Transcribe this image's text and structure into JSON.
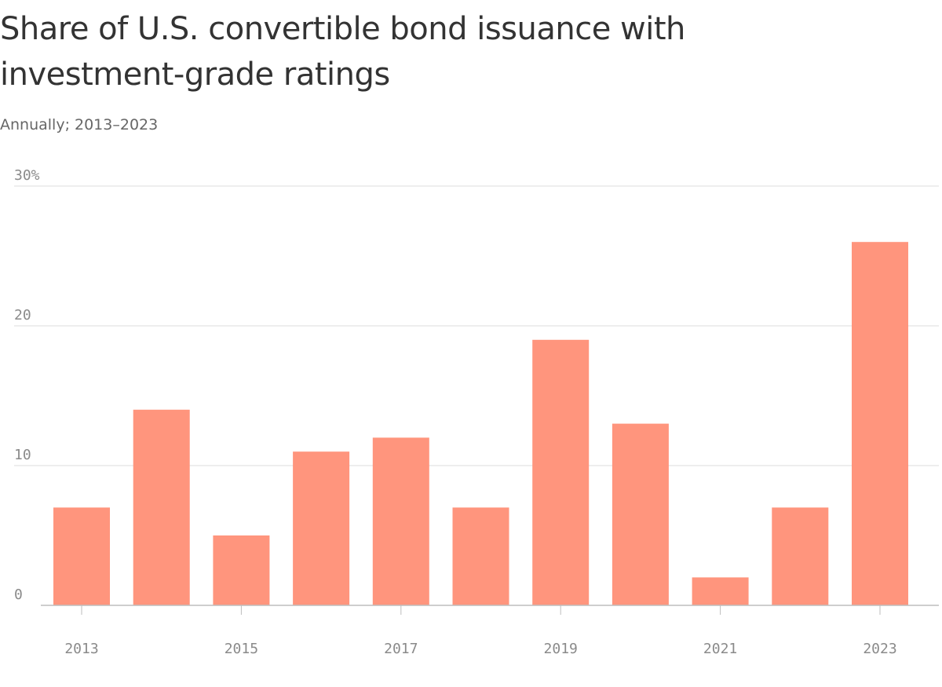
{
  "chart_data": {
    "type": "bar",
    "title": "Share of U.S. convertible bond issuance with investment-grade ratings",
    "subtitle": "Annually; 2013–2023",
    "categories": [
      "2013",
      "2014",
      "2015",
      "2016",
      "2017",
      "2018",
      "2019",
      "2020",
      "2021",
      "2022",
      "2023"
    ],
    "values": [
      7,
      14,
      5,
      11,
      12,
      7,
      19,
      13,
      2,
      7,
      26
    ],
    "x_tick_labels": [
      "2013",
      "2015",
      "2017",
      "2019",
      "2021",
      "2023"
    ],
    "y_ticks": [
      {
        "value": 0,
        "label": "0"
      },
      {
        "value": 10,
        "label": "10"
      },
      {
        "value": 20,
        "label": "20"
      },
      {
        "value": 30,
        "label": "30%"
      }
    ],
    "ylim": [
      0,
      30
    ],
    "xlabel": "",
    "ylabel": "",
    "grid": true,
    "legend": "none",
    "bar_color": "#ff957d"
  }
}
